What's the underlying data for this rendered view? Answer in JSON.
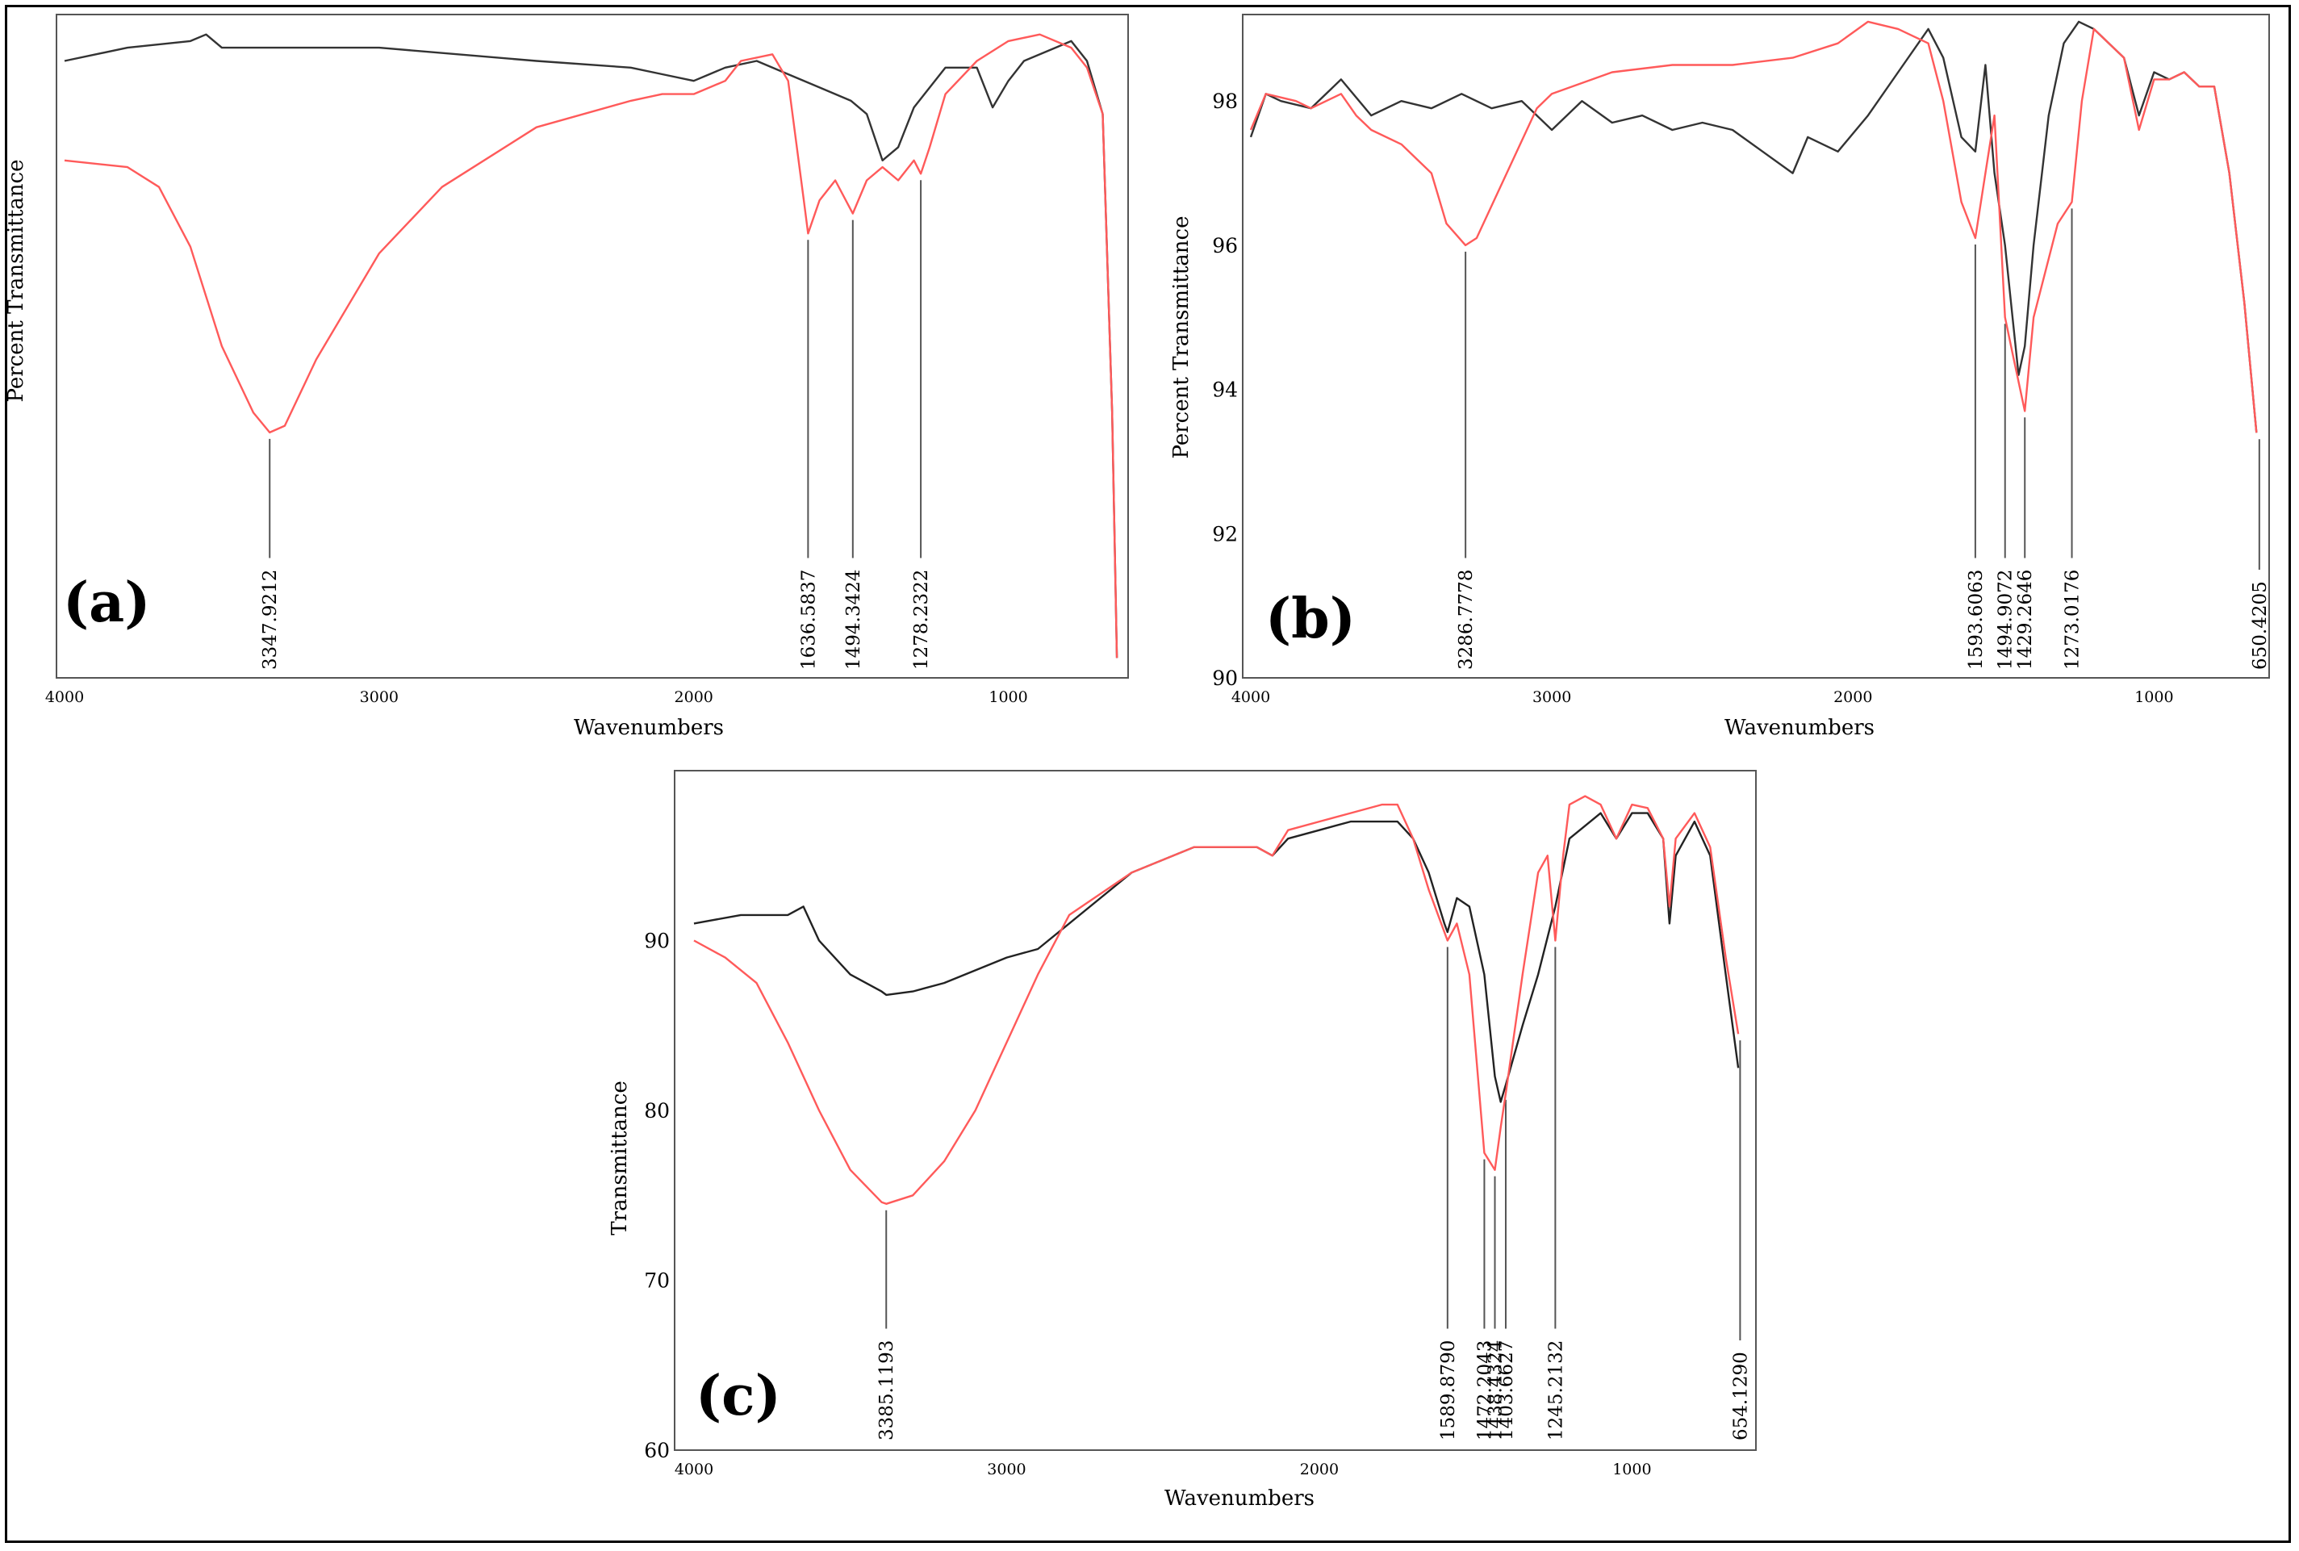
{
  "chart_data": [
    {
      "type": "line",
      "panel": "(a)",
      "xlabel": "Wavenumbers",
      "ylabel": "Percent Transmittance",
      "xlim": [
        4000,
        650
      ],
      "ylim": [
        0,
        100
      ],
      "xticks": [
        4000,
        3000,
        2000,
        1000
      ],
      "yticks": [],
      "series": [
        {
          "name": "black",
          "color": "#333333",
          "points": [
            [
              4000,
              93
            ],
            [
              3800,
              95
            ],
            [
              3600,
              96
            ],
            [
              3550,
              97
            ],
            [
              3500,
              95
            ],
            [
              3000,
              95
            ],
            [
              2500,
              93
            ],
            [
              2200,
              92
            ],
            [
              2100,
              91
            ],
            [
              2000,
              90
            ],
            [
              1950,
              91
            ],
            [
              1900,
              92
            ],
            [
              1800,
              93
            ],
            [
              1700,
              91
            ],
            [
              1600,
              89
            ],
            [
              1500,
              87
            ],
            [
              1450,
              85
            ],
            [
              1400,
              78
            ],
            [
              1350,
              80
            ],
            [
              1300,
              86
            ],
            [
              1200,
              92
            ],
            [
              1100,
              92
            ],
            [
              1050,
              86
            ],
            [
              1000,
              90
            ],
            [
              950,
              93
            ],
            [
              850,
              95
            ],
            [
              800,
              96
            ],
            [
              750,
              93
            ],
            [
              700,
              85
            ],
            [
              670,
              40
            ],
            [
              655,
              3
            ]
          ]
        },
        {
          "name": "red",
          "color": "#ff5a5a",
          "points": [
            [
              4000,
              78
            ],
            [
              3800,
              77
            ],
            [
              3700,
              74
            ],
            [
              3600,
              65
            ],
            [
              3500,
              50
            ],
            [
              3400,
              40
            ],
            [
              3347.9,
              37
            ],
            [
              3300,
              38
            ],
            [
              3200,
              48
            ],
            [
              3000,
              64
            ],
            [
              2800,
              74
            ],
            [
              2500,
              83
            ],
            [
              2200,
              87
            ],
            [
              2100,
              88
            ],
            [
              2000,
              88
            ],
            [
              1900,
              90
            ],
            [
              1850,
              93
            ],
            [
              1750,
              94
            ],
            [
              1700,
              90
            ],
            [
              1650,
              72
            ],
            [
              1636.6,
              67
            ],
            [
              1600,
              72
            ],
            [
              1550,
              75
            ],
            [
              1494.3,
              70
            ],
            [
              1450,
              75
            ],
            [
              1400,
              77
            ],
            [
              1350,
              75
            ],
            [
              1300,
              78
            ],
            [
              1278.2,
              76
            ],
            [
              1250,
              80
            ],
            [
              1200,
              88
            ],
            [
              1100,
              93
            ],
            [
              1000,
              96
            ],
            [
              900,
              97
            ],
            [
              800,
              95
            ],
            [
              750,
              92
            ],
            [
              700,
              85
            ],
            [
              670,
              40
            ],
            [
              655,
              3
            ]
          ]
        }
      ],
      "peaks": [
        "3347.9212",
        "1636.5837",
        "1494.3424",
        "1278.2322"
      ]
    },
    {
      "type": "line",
      "panel": "(b)",
      "xlabel": "Wavenumbers",
      "ylabel": "Percent Transmittance",
      "xlim": [
        4000,
        650
      ],
      "ylim": [
        90,
        99.2
      ],
      "xticks": [
        4000,
        3000,
        2000,
        1000
      ],
      "yticks": [
        90,
        92,
        94,
        96,
        98
      ],
      "series": [
        {
          "name": "black",
          "color": "#333333",
          "points": [
            [
              4000,
              97.5
            ],
            [
              3950,
              98.1
            ],
            [
              3900,
              98.0
            ],
            [
              3800,
              97.9
            ],
            [
              3700,
              98.3
            ],
            [
              3600,
              97.8
            ],
            [
              3500,
              98.0
            ],
            [
              3400,
              97.9
            ],
            [
              3300,
              98.1
            ],
            [
              3200,
              97.9
            ],
            [
              3100,
              98.0
            ],
            [
              3000,
              97.6
            ],
            [
              2900,
              98.0
            ],
            [
              2800,
              97.7
            ],
            [
              2700,
              97.8
            ],
            [
              2600,
              97.6
            ],
            [
              2500,
              97.7
            ],
            [
              2400,
              97.6
            ],
            [
              2300,
              97.3
            ],
            [
              2200,
              97.0
            ],
            [
              2150,
              97.5
            ],
            [
              2050,
              97.3
            ],
            [
              1950,
              97.8
            ],
            [
              1850,
              98.4
            ],
            [
              1750,
              99.0
            ],
            [
              1700,
              98.6
            ],
            [
              1640,
              97.5
            ],
            [
              1593.6,
              97.3
            ],
            [
              1560,
              98.5
            ],
            [
              1530,
              97.0
            ],
            [
              1494.9,
              96.0
            ],
            [
              1470,
              95.0
            ],
            [
              1450,
              94.2
            ],
            [
              1429.3,
              94.6
            ],
            [
              1400,
              96.0
            ],
            [
              1350,
              97.8
            ],
            [
              1300,
              98.8
            ],
            [
              1250,
              99.1
            ],
            [
              1200,
              99.0
            ],
            [
              1100,
              98.6
            ],
            [
              1050,
              97.8
            ],
            [
              1000,
              98.4
            ],
            [
              950,
              98.3
            ],
            [
              900,
              98.4
            ],
            [
              850,
              98.2
            ],
            [
              800,
              98.2
            ],
            [
              750,
              97.0
            ],
            [
              700,
              95.2
            ],
            [
              660,
              93.4
            ]
          ]
        },
        {
          "name": "red",
          "color": "#ff5a5a",
          "points": [
            [
              4000,
              97.6
            ],
            [
              3950,
              98.1
            ],
            [
              3850,
              98.0
            ],
            [
              3800,
              97.9
            ],
            [
              3700,
              98.1
            ],
            [
              3650,
              97.8
            ],
            [
              3600,
              97.6
            ],
            [
              3500,
              97.4
            ],
            [
              3400,
              97.0
            ],
            [
              3350,
              96.3
            ],
            [
              3286.8,
              96.0
            ],
            [
              3250,
              96.1
            ],
            [
              3150,
              97.0
            ],
            [
              3050,
              97.9
            ],
            [
              3000,
              98.1
            ],
            [
              2800,
              98.4
            ],
            [
              2600,
              98.5
            ],
            [
              2400,
              98.5
            ],
            [
              2200,
              98.6
            ],
            [
              2050,
              98.8
            ],
            [
              1950,
              99.1
            ],
            [
              1850,
              99.0
            ],
            [
              1750,
              98.8
            ],
            [
              1700,
              98.0
            ],
            [
              1640,
              96.6
            ],
            [
              1593.6,
              96.1
            ],
            [
              1560,
              97.0
            ],
            [
              1530,
              97.8
            ],
            [
              1494.9,
              95.0
            ],
            [
              1470,
              94.5
            ],
            [
              1429.3,
              93.7
            ],
            [
              1400,
              95.0
            ],
            [
              1320,
              96.3
            ],
            [
              1273.0,
              96.6
            ],
            [
              1240,
              98.0
            ],
            [
              1200,
              99.0
            ],
            [
              1100,
              98.6
            ],
            [
              1050,
              97.6
            ],
            [
              1000,
              98.3
            ],
            [
              950,
              98.3
            ],
            [
              900,
              98.4
            ],
            [
              850,
              98.2
            ],
            [
              800,
              98.2
            ],
            [
              750,
              97.0
            ],
            [
              700,
              95.2
            ],
            [
              660,
              93.4
            ]
          ]
        }
      ],
      "peaks": [
        "3286.7778",
        "1593.6063",
        "1494.9072",
        "1429.2646",
        "1273.0176",
        "650.4205"
      ]
    },
    {
      "type": "line",
      "panel": "(c)",
      "xlabel": "Wavenumbers",
      "ylabel": "Transmittance",
      "xlim": [
        4000,
        650
      ],
      "ylim": [
        60,
        100
      ],
      "xticks": [
        4000,
        3000,
        2000,
        1000
      ],
      "yticks": [
        60,
        70,
        80,
        90
      ],
      "series": [
        {
          "name": "black",
          "color": "#222222",
          "points": [
            [
              4000,
              91
            ],
            [
              3850,
              91.5
            ],
            [
              3700,
              91.5
            ],
            [
              3650,
              92
            ],
            [
              3600,
              90
            ],
            [
              3500,
              88
            ],
            [
              3400,
              87
            ],
            [
              3385,
              86.8
            ],
            [
              3300,
              87
            ],
            [
              3200,
              87.5
            ],
            [
              3000,
              89
            ],
            [
              2900,
              89.5
            ],
            [
              2800,
              91
            ],
            [
              2600,
              94
            ],
            [
              2400,
              95.5
            ],
            [
              2200,
              95.5
            ],
            [
              2150,
              95
            ],
            [
              2100,
              96
            ],
            [
              2000,
              96.5
            ],
            [
              1900,
              97
            ],
            [
              1800,
              97
            ],
            [
              1750,
              97
            ],
            [
              1700,
              96
            ],
            [
              1650,
              94
            ],
            [
              1600,
              91
            ],
            [
              1589.9,
              90.5
            ],
            [
              1560,
              92.5
            ],
            [
              1520,
              92
            ],
            [
              1472.2,
              88
            ],
            [
              1438.4,
              82
            ],
            [
              1420,
              80.5
            ],
            [
              1403.7,
              81.5
            ],
            [
              1350,
              85
            ],
            [
              1300,
              88
            ],
            [
              1245.2,
              92
            ],
            [
              1200,
              96
            ],
            [
              1100,
              97.5
            ],
            [
              1050,
              96
            ],
            [
              1000,
              97.5
            ],
            [
              950,
              97.5
            ],
            [
              900,
              96
            ],
            [
              880,
              91
            ],
            [
              860,
              95
            ],
            [
              800,
              97
            ],
            [
              750,
              95
            ],
            [
              700,
              88
            ],
            [
              660,
              82.5
            ]
          ]
        },
        {
          "name": "red",
          "color": "#ff5a5a",
          "points": [
            [
              4000,
              90
            ],
            [
              3900,
              89
            ],
            [
              3800,
              87.5
            ],
            [
              3700,
              84
            ],
            [
              3600,
              80
            ],
            [
              3500,
              76.5
            ],
            [
              3400,
              74.6
            ],
            [
              3385,
              74.5
            ],
            [
              3300,
              75
            ],
            [
              3200,
              77
            ],
            [
              3100,
              80
            ],
            [
              3000,
              84
            ],
            [
              2900,
              88
            ],
            [
              2800,
              91.5
            ],
            [
              2600,
              94
            ],
            [
              2400,
              95.5
            ],
            [
              2200,
              95.5
            ],
            [
              2150,
              95
            ],
            [
              2100,
              96.5
            ],
            [
              2000,
              97
            ],
            [
              1900,
              97.5
            ],
            [
              1800,
              98
            ],
            [
              1750,
              98
            ],
            [
              1700,
              96
            ],
            [
              1650,
              93
            ],
            [
              1600,
              90.5
            ],
            [
              1589.9,
              90
            ],
            [
              1560,
              91
            ],
            [
              1520,
              88
            ],
            [
              1472.2,
              77.5
            ],
            [
              1438.4,
              76.5
            ],
            [
              1420,
              79
            ],
            [
              1403.7,
              81
            ],
            [
              1350,
              88
            ],
            [
              1300,
              94
            ],
            [
              1270,
              95
            ],
            [
              1245.2,
              90
            ],
            [
              1220,
              95
            ],
            [
              1200,
              98
            ],
            [
              1150,
              98.5
            ],
            [
              1100,
              98
            ],
            [
              1050,
              96
            ],
            [
              1000,
              98
            ],
            [
              950,
              97.8
            ],
            [
              900,
              96
            ],
            [
              880,
              92
            ],
            [
              860,
              96
            ],
            [
              800,
              97.5
            ],
            [
              750,
              95.5
            ],
            [
              700,
              89
            ],
            [
              660,
              84.5
            ]
          ]
        }
      ],
      "peaks": [
        "3385.1193",
        "1589.8790",
        "1472.2043",
        "1438.4324",
        "1403.6627",
        "1245.2132",
        "654.1290"
      ]
    }
  ]
}
